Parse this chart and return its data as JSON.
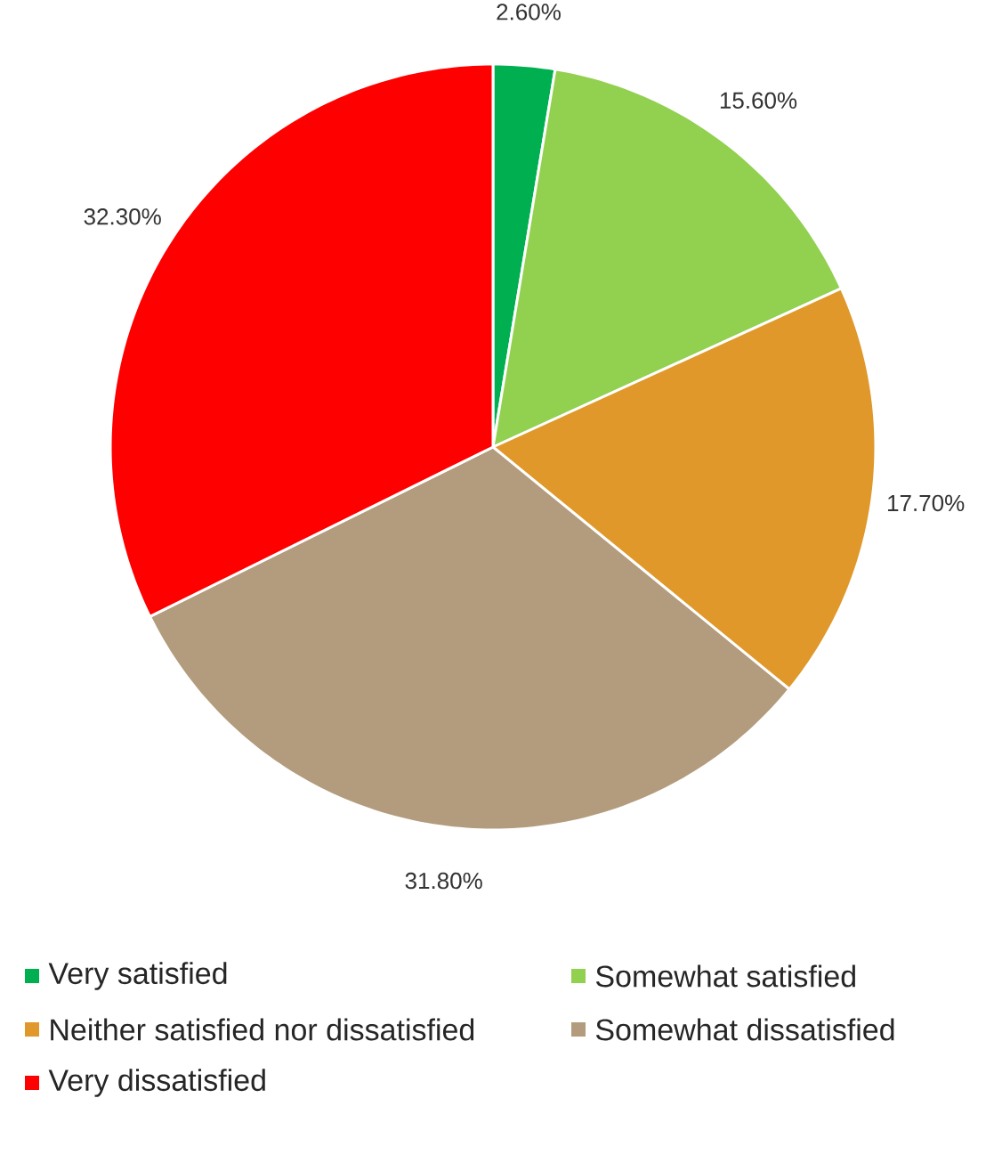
{
  "chart_data": {
    "type": "pie",
    "categories": [
      "Very satisfied",
      "Somewhat satisfied",
      "Neither satisfied nor dissatisfied",
      "Somewhat dissatisfied",
      "Very dissatisfied"
    ],
    "values": [
      2.6,
      15.6,
      17.7,
      31.8,
      32.3
    ],
    "value_labels": [
      "2.60%",
      "15.60%",
      "17.70%",
      "31.80%",
      "32.30%"
    ],
    "colors": [
      "#00b050",
      "#92d050",
      "#e0982a",
      "#b39c7d",
      "#ff0000"
    ],
    "legend": "bottom"
  }
}
